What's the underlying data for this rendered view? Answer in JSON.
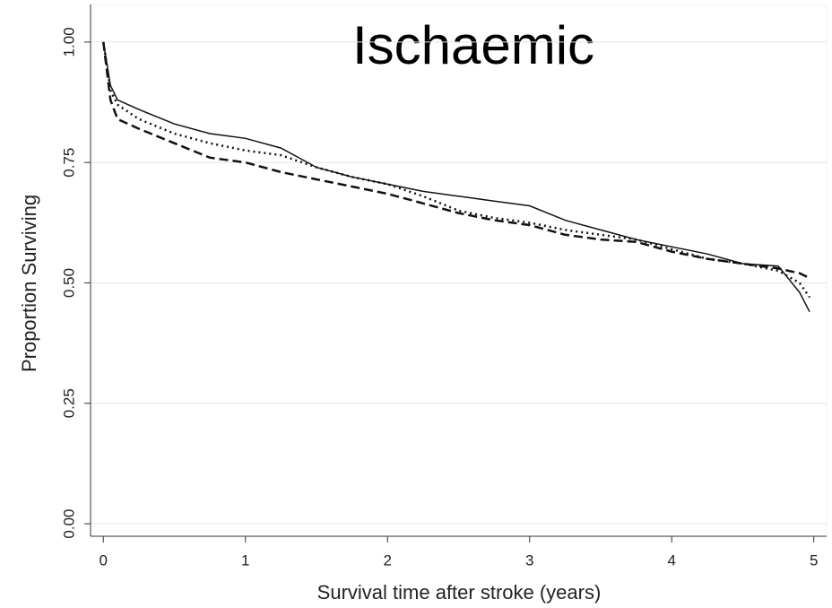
{
  "chart_data": {
    "type": "line",
    "title": "Ischaemic",
    "x_label": "Survival time after stroke (years)",
    "y_label": "Proportion Surviving",
    "x": [
      0,
      0.05,
      0.1,
      0.25,
      0.5,
      0.75,
      1,
      1.25,
      1.5,
      1.75,
      2,
      2.25,
      2.5,
      2.75,
      3,
      3.25,
      3.5,
      3.75,
      4,
      4.25,
      4.5,
      4.75,
      4.9,
      4.97
    ],
    "series": [
      {
        "color": "#111111",
        "line_style": "solid",
        "values": [
          1.0,
          0.91,
          0.88,
          0.86,
          0.83,
          0.81,
          0.8,
          0.78,
          0.74,
          0.72,
          0.705,
          0.69,
          0.68,
          0.67,
          0.66,
          0.63,
          0.61,
          0.59,
          0.575,
          0.56,
          0.54,
          0.535,
          0.48,
          0.44
        ]
      },
      {
        "color": "#111111",
        "line_style": "dotted",
        "values": [
          1.0,
          0.9,
          0.87,
          0.84,
          0.81,
          0.79,
          0.775,
          0.765,
          0.74,
          0.72,
          0.705,
          0.68,
          0.65,
          0.635,
          0.625,
          0.61,
          0.6,
          0.59,
          0.57,
          0.55,
          0.54,
          0.525,
          0.5,
          0.47
        ]
      },
      {
        "color": "#111111",
        "line_style": "dashed",
        "values": [
          1.0,
          0.88,
          0.84,
          0.82,
          0.79,
          0.76,
          0.75,
          0.73,
          0.715,
          0.7,
          0.685,
          0.665,
          0.645,
          0.63,
          0.62,
          0.6,
          0.59,
          0.585,
          0.565,
          0.55,
          0.54,
          0.53,
          0.52,
          0.51
        ]
      }
    ],
    "xlim": [
      -0.09,
      5.09
    ],
    "xticks": [
      0,
      1,
      2,
      3,
      4,
      5
    ],
    "ylim": [
      -0.026,
      1.078
    ],
    "yticks": [
      {
        "value": 0,
        "label": "0.00"
      },
      {
        "value": 0.25,
        "label": "0.25"
      },
      {
        "value": 0.5,
        "label": "0.50"
      },
      {
        "value": 0.75,
        "label": "0.75"
      },
      {
        "value": 1,
        "label": "1.00"
      }
    ],
    "grid": true,
    "grid_color": "#dde8ec"
  }
}
